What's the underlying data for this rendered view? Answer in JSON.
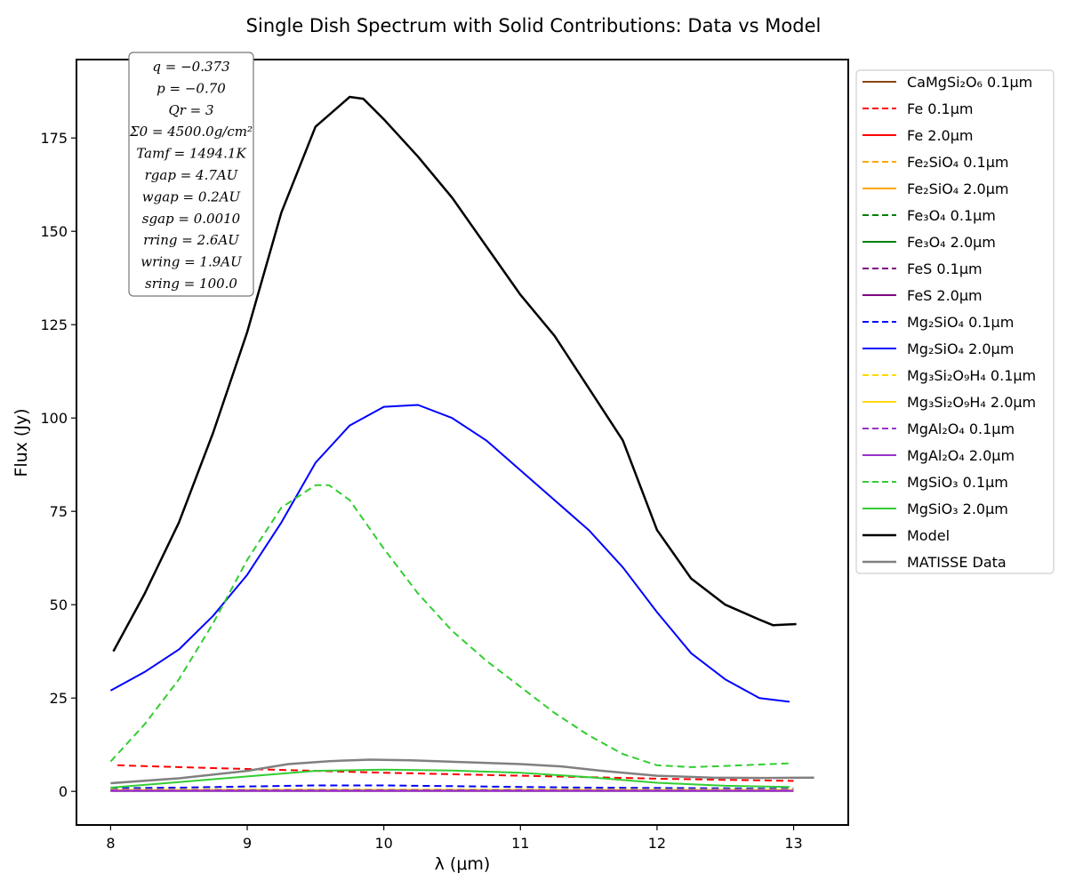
{
  "chart_data": {
    "type": "line",
    "title": "Single Dish Spectrum with Solid Contributions: Data vs Model",
    "xlabel": "λ (μm)",
    "ylabel": "Flux (Jy)",
    "xlim": [
      7.75,
      13.4
    ],
    "ylim": [
      -9,
      196
    ],
    "x_ticks": [
      8,
      9,
      10,
      11,
      12,
      13
    ],
    "y_ticks": [
      0,
      25,
      50,
      75,
      100,
      125,
      150,
      175
    ],
    "grid": false,
    "legend_position": "outside-right",
    "params": [
      "q = −0.373",
      "p = −0.70",
      "Qr = 3",
      "Σ0 = 4500.0g/cm²",
      "Tamf = 1494.1K",
      "rgap = 4.7AU",
      "wgap = 0.2AU",
      "sgap = 0.0010",
      "rring = 2.6AU",
      "wring = 1.9AU",
      "sring = 100.0"
    ],
    "series": [
      {
        "name": "CaMgSi₂O₆ 0.1μm",
        "color": "#8B4513",
        "dash": false,
        "width": 2,
        "x": [
          8.0,
          13.0
        ],
        "y": [
          0.2,
          0.2
        ]
      },
      {
        "name": "Fe 0.1μm",
        "color": "#ff0000",
        "dash": true,
        "width": 2,
        "x": [
          8.05,
          8.5,
          9.0,
          9.5,
          10.0,
          10.5,
          11.0,
          11.5,
          12.0,
          12.5,
          13.0
        ],
        "y": [
          7.0,
          6.5,
          6.0,
          5.5,
          5.0,
          4.6,
          4.2,
          3.8,
          3.4,
          3.1,
          2.8
        ]
      },
      {
        "name": "Fe 2.0μm",
        "color": "#ff0000",
        "dash": false,
        "width": 2,
        "x": [
          8.0,
          13.0
        ],
        "y": [
          0.3,
          0.3
        ]
      },
      {
        "name": "Fe₂SiO₄ 0.1μm",
        "color": "#FFA500",
        "dash": true,
        "width": 2,
        "x": [
          8.0,
          13.0
        ],
        "y": [
          0.4,
          0.4
        ]
      },
      {
        "name": "Fe₂SiO₄ 2.0μm",
        "color": "#FFA500",
        "dash": false,
        "width": 2,
        "x": [
          8.0,
          13.0
        ],
        "y": [
          0.3,
          0.3
        ]
      },
      {
        "name": "Fe₃O₄ 0.1μm",
        "color": "#008000",
        "dash": true,
        "width": 2,
        "x": [
          8.0,
          13.0
        ],
        "y": [
          0.35,
          0.35
        ]
      },
      {
        "name": "Fe₃O₄ 2.0μm",
        "color": "#008000",
        "dash": false,
        "width": 2,
        "x": [
          8.0,
          13.0
        ],
        "y": [
          0.3,
          0.3
        ]
      },
      {
        "name": "FeS 0.1μm",
        "color": "#800080",
        "dash": true,
        "width": 2,
        "x": [
          8.0,
          13.0
        ],
        "y": [
          0.2,
          0.2
        ]
      },
      {
        "name": "FeS 2.0μm",
        "color": "#800080",
        "dash": false,
        "width": 2,
        "x": [
          8.0,
          13.0
        ],
        "y": [
          0.1,
          0.1
        ]
      },
      {
        "name": "Mg₂SiO₄ 0.1μm",
        "color": "#0000ff",
        "dash": true,
        "width": 2,
        "x": [
          8.0,
          8.5,
          9.0,
          9.5,
          10.0,
          10.5,
          11.0,
          11.5,
          12.0,
          12.5,
          13.0
        ],
        "y": [
          0.8,
          1.0,
          1.3,
          1.6,
          1.6,
          1.4,
          1.2,
          1.0,
          0.9,
          0.8,
          0.7
        ]
      },
      {
        "name": "Mg₂SiO₄ 2.0μm",
        "color": "#0000ff",
        "dash": false,
        "width": 2,
        "x": [
          8.0,
          8.25,
          8.5,
          8.75,
          9.0,
          9.25,
          9.5,
          9.75,
          10.0,
          10.25,
          10.5,
          10.75,
          11.0,
          11.25,
          11.5,
          11.75,
          12.0,
          12.25,
          12.5,
          12.75,
          12.97
        ],
        "y": [
          27,
          32,
          38,
          47,
          58,
          72,
          88,
          98,
          103,
          103.5,
          100,
          94,
          86,
          78,
          70,
          60,
          48,
          37,
          30,
          25,
          24
        ]
      },
      {
        "name": "Mg₃Si₂O₉H₄ 0.1μm",
        "color": "#FFD700",
        "dash": true,
        "width": 2,
        "x": [
          8.0,
          13.0
        ],
        "y": [
          0.5,
          0.5
        ]
      },
      {
        "name": "Mg₃Si₂O₉H₄ 2.0μm",
        "color": "#FFD700",
        "dash": false,
        "width": 2,
        "x": [
          8.0,
          13.0
        ],
        "y": [
          0.4,
          0.4
        ]
      },
      {
        "name": "MgAl₂O₄ 0.1μm",
        "color": "#9932CC",
        "dash": true,
        "width": 2,
        "x": [
          8.0,
          13.0
        ],
        "y": [
          0.3,
          0.3
        ]
      },
      {
        "name": "MgAl₂O₄ 2.0μm",
        "color": "#9932CC",
        "dash": false,
        "width": 2,
        "x": [
          8.0,
          13.0
        ],
        "y": [
          0.2,
          0.2
        ]
      },
      {
        "name": "MgSiO₃ 0.1μm",
        "color": "#32CD32",
        "dash": true,
        "width": 2,
        "x": [
          8.0,
          8.25,
          8.5,
          8.75,
          9.0,
          9.25,
          9.5,
          9.6,
          9.75,
          10.0,
          10.25,
          10.5,
          10.75,
          11.0,
          11.25,
          11.5,
          11.75,
          12.0,
          12.25,
          12.5,
          12.75,
          12.97
        ],
        "y": [
          8,
          18,
          30,
          45,
          62,
          76,
          82,
          82,
          78,
          65,
          53,
          43,
          35,
          28,
          21,
          15,
          10,
          7,
          6.5,
          6.8,
          7.2,
          7.5
        ]
      },
      {
        "name": "MgSiO₃ 2.0μm",
        "color": "#32CD32",
        "dash": false,
        "width": 2,
        "x": [
          8.0,
          8.5,
          9.0,
          9.5,
          10.0,
          10.5,
          11.0,
          11.5,
          12.0,
          12.5,
          12.97
        ],
        "y": [
          1.0,
          2.5,
          4.0,
          5.5,
          5.8,
          5.6,
          5.0,
          3.8,
          2.3,
          1.5,
          1.2
        ]
      },
      {
        "name": "Model",
        "color": "#000000",
        "dash": false,
        "width": 2.5,
        "x": [
          8.02,
          8.25,
          8.5,
          8.75,
          9.0,
          9.25,
          9.5,
          9.75,
          9.85,
          10.0,
          10.25,
          10.5,
          10.75,
          11.0,
          11.25,
          11.5,
          11.75,
          12.0,
          12.25,
          12.5,
          12.75,
          12.85,
          13.02
        ],
        "y": [
          37.5,
          53,
          72,
          96,
          123,
          155,
          178,
          186,
          185.5,
          180,
          170,
          159,
          146,
          133,
          122,
          108,
          94,
          70,
          57,
          50,
          46,
          44.5,
          44.8
        ]
      },
      {
        "name": "MATISSE Data",
        "color": "#808080",
        "dash": false,
        "width": 2.5,
        "x": [
          8.0,
          8.5,
          9.0,
          9.3,
          9.6,
          9.9,
          10.2,
          10.6,
          11.0,
          11.3,
          11.6,
          12.0,
          12.4,
          12.8,
          13.15
        ],
        "y": [
          2.2,
          3.5,
          5.5,
          7.3,
          8.1,
          8.5,
          8.3,
          7.8,
          7.3,
          6.7,
          5.5,
          4.2,
          3.7,
          3.6,
          3.7
        ]
      }
    ]
  }
}
